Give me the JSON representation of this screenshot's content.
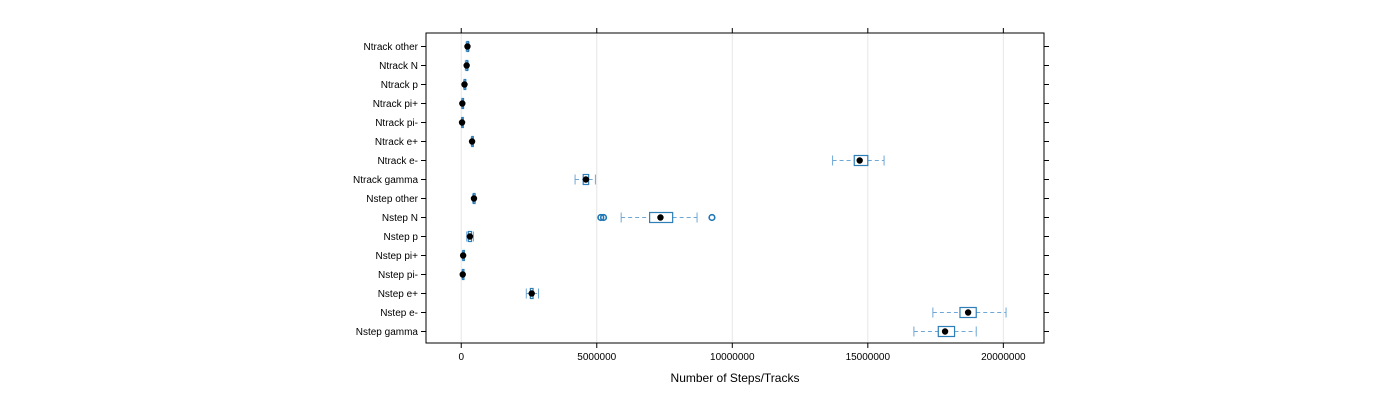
{
  "chart_data": {
    "type": "boxplot",
    "xlabel": "Number of Steps/Tracks",
    "xlim": [
      -1300000,
      21500000
    ],
    "x_ticks": [
      0,
      5000000,
      10000000,
      15000000,
      20000000
    ],
    "x_tick_labels": [
      "0",
      "5000000",
      "10000000",
      "15000000",
      "20000000"
    ],
    "grid": "vertical",
    "colors": {
      "box": "#2E7EB8",
      "whisker": "#6FA8D6",
      "median": "#000000",
      "outlier": "#1F77B4",
      "grid": "#E6E6E6",
      "frame": "#000000"
    },
    "categories": [
      {
        "label": "Ntrack other",
        "min": 180000,
        "q1": 210000,
        "median": 230000,
        "q3": 250000,
        "max": 290000,
        "outliers": []
      },
      {
        "label": "Ntrack N",
        "min": 150000,
        "q1": 180000,
        "median": 200000,
        "q3": 220000,
        "max": 260000,
        "outliers": []
      },
      {
        "label": "Ntrack p",
        "min": 90000,
        "q1": 110000,
        "median": 120000,
        "q3": 140000,
        "max": 170000,
        "outliers": []
      },
      {
        "label": "Ntrack pi+",
        "min": 20000,
        "q1": 30000,
        "median": 40000,
        "q3": 50000,
        "max": 70000,
        "outliers": []
      },
      {
        "label": "Ntrack pi-",
        "min": 10000,
        "q1": 20000,
        "median": 30000,
        "q3": 40000,
        "max": 50000,
        "outliers": []
      },
      {
        "label": "Ntrack e+",
        "min": 370000,
        "q1": 390000,
        "median": 400000,
        "q3": 410000,
        "max": 430000,
        "outliers": []
      },
      {
        "label": "Ntrack e-",
        "min": 13700000,
        "q1": 14500000,
        "median": 14700000,
        "q3": 15000000,
        "max": 15600000,
        "outliers": []
      },
      {
        "label": "Ntrack gamma",
        "min": 4200000,
        "q1": 4500000,
        "median": 4600000,
        "q3": 4700000,
        "max": 4950000,
        "outliers": []
      },
      {
        "label": "Nstep other",
        "min": 420000,
        "q1": 450000,
        "median": 470000,
        "q3": 490000,
        "max": 520000,
        "outliers": []
      },
      {
        "label": "Nstep N",
        "min": 5900000,
        "q1": 6950000,
        "median": 7350000,
        "q3": 7800000,
        "max": 8700000,
        "outliers": [
          5150000,
          5250000,
          9250000
        ]
      },
      {
        "label": "Nstep p",
        "min": 200000,
        "q1": 260000,
        "median": 320000,
        "q3": 380000,
        "max": 450000,
        "outliers": []
      },
      {
        "label": "Nstep pi+",
        "min": 40000,
        "q1": 60000,
        "median": 70000,
        "q3": 80000,
        "max": 100000,
        "outliers": []
      },
      {
        "label": "Nstep pi-",
        "min": 30000,
        "q1": 45000,
        "median": 55000,
        "q3": 65000,
        "max": 80000,
        "outliers": []
      },
      {
        "label": "Nstep e+",
        "min": 2400000,
        "q1": 2550000,
        "median": 2600000,
        "q3": 2650000,
        "max": 2850000,
        "outliers": []
      },
      {
        "label": "Nstep e-",
        "min": 17400000,
        "q1": 18400000,
        "median": 18700000,
        "q3": 19000000,
        "max": 20100000,
        "outliers": []
      },
      {
        "label": "Nstep gamma",
        "min": 16700000,
        "q1": 17600000,
        "median": 17850000,
        "q3": 18200000,
        "max": 19000000,
        "outliers": []
      }
    ]
  }
}
